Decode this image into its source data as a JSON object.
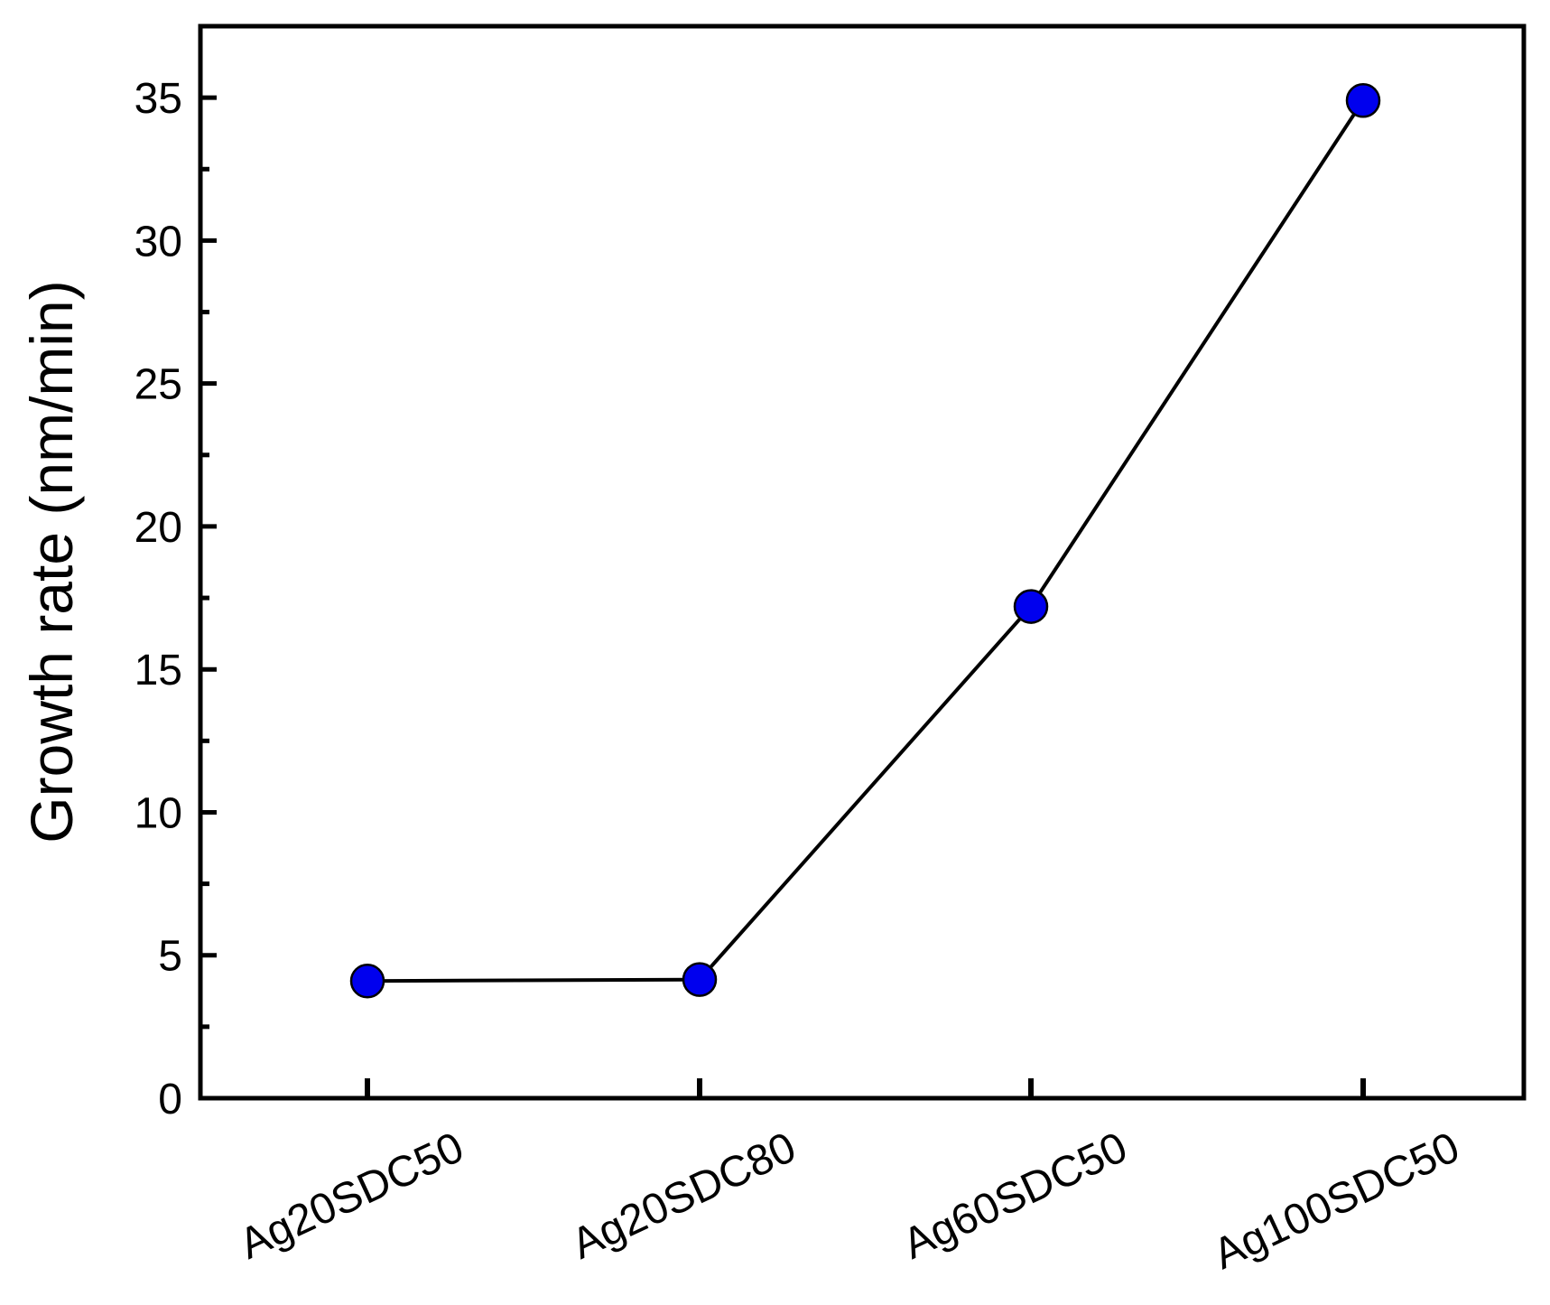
{
  "chart_data": {
    "type": "line",
    "title": "",
    "xlabel": "",
    "ylabel": "Growth rate (nm/min)",
    "categories": [
      "Ag20SDC50",
      "Ag20SDC80",
      "Ag60SDC50",
      "Ag100SDC50"
    ],
    "series": [
      {
        "values": [
          4.1,
          4.15,
          17.2,
          34.9
        ],
        "marker": "circle",
        "marker_color": "#0000ee",
        "line_color": "#000000"
      }
    ],
    "ylim": [
      0,
      37.5
    ],
    "yticks": [
      0,
      5,
      10,
      15,
      20,
      25,
      30,
      35
    ],
    "ytick_labels": [
      "0",
      "5",
      "10",
      "15",
      "20",
      "25",
      "30",
      "35"
    ],
    "y_minor_step": 2.5,
    "x_tick_rotation": "-25deg",
    "grid": false,
    "legend": "none",
    "frame": "full box"
  }
}
